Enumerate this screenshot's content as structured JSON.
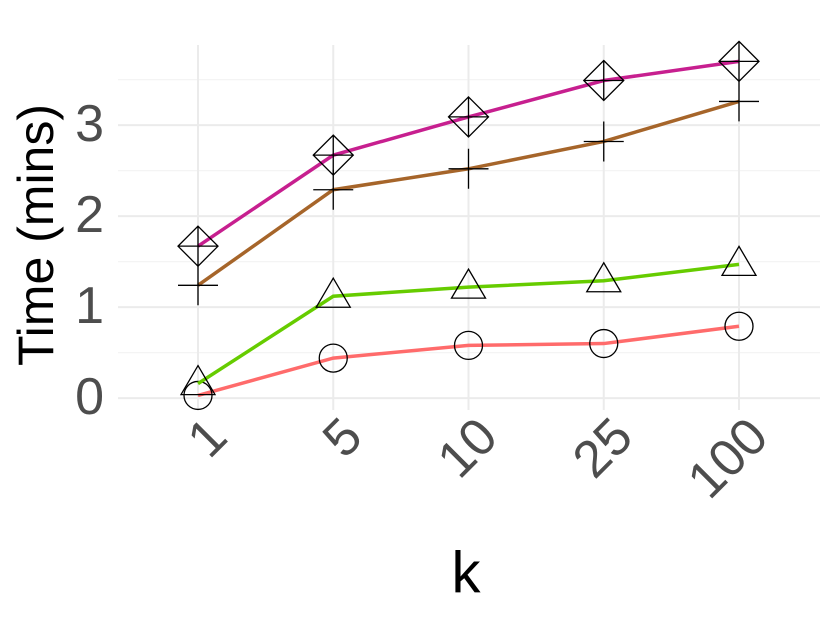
{
  "chart_data": {
    "type": "line",
    "x_label": "k",
    "y_label": "Time (mins)",
    "categories": [
      "1",
      "5",
      "10",
      "25",
      "100"
    ],
    "ylim": [
      -0.13,
      3.88
    ],
    "yticks": [
      0,
      1,
      2,
      3
    ],
    "minor_yticks": [
      0.5,
      1.5,
      2.5,
      3.5
    ],
    "grid": true,
    "series": [
      {
        "color": "#ff6b6b",
        "marker": "circle",
        "values": [
          0.03,
          0.44,
          0.58,
          0.6,
          0.79
        ]
      },
      {
        "color": "#66cc00",
        "marker": "triangle",
        "values": [
          0.16,
          1.12,
          1.22,
          1.29,
          1.47
        ]
      },
      {
        "color": "#a6652a",
        "marker": "plus",
        "values": [
          1.24,
          2.29,
          2.52,
          2.82,
          3.26
        ]
      },
      {
        "color": "#c71f8f",
        "marker": "diamond-plus",
        "values": [
          1.67,
          2.67,
          3.09,
          3.49,
          3.7
        ]
      }
    ]
  }
}
